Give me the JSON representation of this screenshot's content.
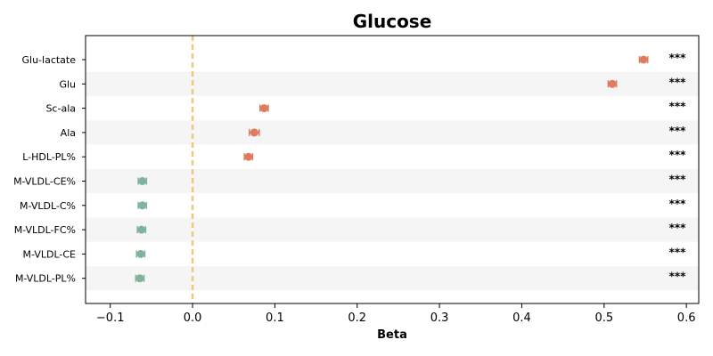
{
  "chart_data": {
    "type": "scatter",
    "title": "Glucose",
    "xlabel": "Beta",
    "ylabel": "",
    "xlim": [
      -0.13,
      0.615
    ],
    "xticks": [
      -0.1,
      0.0,
      0.1,
      0.2,
      0.3,
      0.4,
      0.5,
      0.6
    ],
    "xtick_labels": [
      "−0.1",
      "0.0",
      "0.1",
      "0.2",
      "0.3",
      "0.4",
      "0.5",
      "0.6"
    ],
    "reference_line": 0.0,
    "grid": false,
    "row_shading": "alternating",
    "colors": {
      "positive": "#e07b5f",
      "negative": "#7fb39a",
      "reference": "#f2c77a",
      "band": "#f5f5f5"
    },
    "points": [
      {
        "label": "Glu-lactate",
        "beta": 0.548,
        "ci": [
          0.543,
          0.553
        ],
        "significance": "***"
      },
      {
        "label": "Glu",
        "beta": 0.51,
        "ci": [
          0.505,
          0.515
        ],
        "significance": "***"
      },
      {
        "label": "Sc-ala",
        "beta": 0.087,
        "ci": [
          0.082,
          0.092
        ],
        "significance": "***"
      },
      {
        "label": "Ala",
        "beta": 0.075,
        "ci": [
          0.069,
          0.081
        ],
        "significance": "***"
      },
      {
        "label": "L-HDL-PL%",
        "beta": 0.068,
        "ci": [
          0.063,
          0.073
        ],
        "significance": "***"
      },
      {
        "label": "M-VLDL-CE%",
        "beta": -0.061,
        "ci": [
          -0.066,
          -0.056
        ],
        "significance": "***"
      },
      {
        "label": "M-VLDL-C%",
        "beta": -0.061,
        "ci": [
          -0.066,
          -0.056
        ],
        "significance": "***"
      },
      {
        "label": "M-VLDL-FC%",
        "beta": -0.062,
        "ci": [
          -0.067,
          -0.057
        ],
        "significance": "***"
      },
      {
        "label": "M-VLDL-CE",
        "beta": -0.063,
        "ci": [
          -0.068,
          -0.058
        ],
        "significance": "***"
      },
      {
        "label": "M-VLDL-PL%",
        "beta": -0.064,
        "ci": [
          -0.069,
          -0.059
        ],
        "significance": "***"
      }
    ]
  }
}
